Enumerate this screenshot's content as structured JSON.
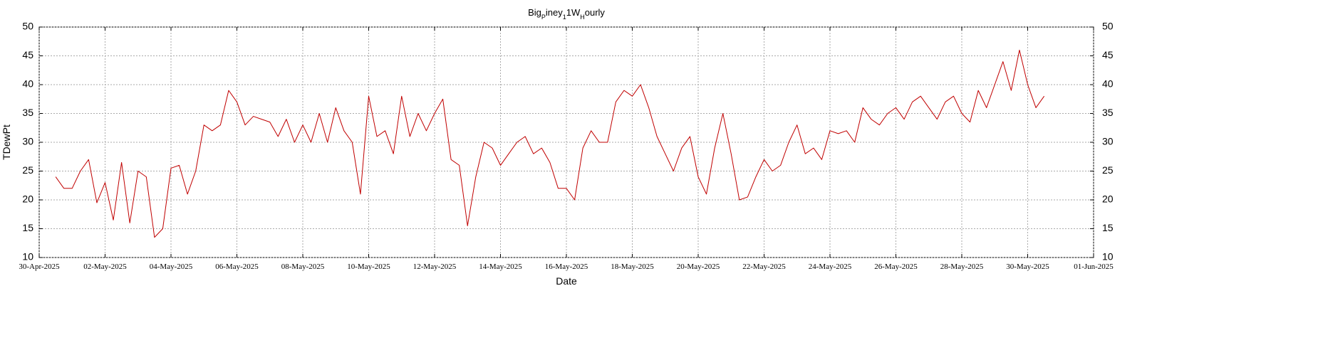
{
  "chart_data": {
    "type": "line",
    "title": [
      "Big",
      "P",
      "iney",
      "1",
      "1W",
      "H",
      "ourly"
    ],
    "x_label": "Date",
    "y_label": "TDewPt",
    "grid": true,
    "xlim": [
      "2025-04-30",
      "2025-06-01"
    ],
    "xticks": [
      {
        "value": "2025-04-30",
        "label": "30-Apr-2025"
      },
      {
        "value": "2025-05-02",
        "label": "02-May-2025"
      },
      {
        "value": "2025-05-04",
        "label": "04-May-2025"
      },
      {
        "value": "2025-05-06",
        "label": "06-May-2025"
      },
      {
        "value": "2025-05-08",
        "label": "08-May-2025"
      },
      {
        "value": "2025-05-10",
        "label": "10-May-2025"
      },
      {
        "value": "2025-05-12",
        "label": "12-May-2025"
      },
      {
        "value": "2025-05-14",
        "label": "14-May-2025"
      },
      {
        "value": "2025-05-16",
        "label": "16-May-2025"
      },
      {
        "value": "2025-05-18",
        "label": "18-May-2025"
      },
      {
        "value": "2025-05-20",
        "label": "20-May-2025"
      },
      {
        "value": "2025-05-22",
        "label": "22-May-2025"
      },
      {
        "value": "2025-05-24",
        "label": "24-May-2025"
      },
      {
        "value": "2025-05-26",
        "label": "26-May-2025"
      },
      {
        "value": "2025-05-28",
        "label": "28-May-2025"
      },
      {
        "value": "2025-05-30",
        "label": "30-May-2025"
      },
      {
        "value": "2025-06-01",
        "label": "01-Jun-2025"
      }
    ],
    "ylim": [
      10,
      50
    ],
    "yticks": [
      10,
      15,
      20,
      25,
      30,
      35,
      40,
      45,
      50
    ],
    "color": "#c00000",
    "x": [
      "2025-04-30 12:00",
      "2025-04-30 18:00",
      "2025-05-01 00:00",
      "2025-05-01 06:00",
      "2025-05-01 12:00",
      "2025-05-01 18:00",
      "2025-05-02 00:00",
      "2025-05-02 06:00",
      "2025-05-02 12:00",
      "2025-05-02 18:00",
      "2025-05-03 00:00",
      "2025-05-03 06:00",
      "2025-05-03 12:00",
      "2025-05-03 18:00",
      "2025-05-04 00:00",
      "2025-05-04 06:00",
      "2025-05-04 12:00",
      "2025-05-04 18:00",
      "2025-05-05 00:00",
      "2025-05-05 06:00",
      "2025-05-05 12:00",
      "2025-05-05 18:00",
      "2025-05-06 00:00",
      "2025-05-06 06:00",
      "2025-05-06 12:00",
      "2025-05-06 18:00",
      "2025-05-07 00:00",
      "2025-05-07 06:00",
      "2025-05-07 12:00",
      "2025-05-07 18:00",
      "2025-05-08 00:00",
      "2025-05-08 06:00",
      "2025-05-08 12:00",
      "2025-05-08 18:00",
      "2025-05-09 00:00",
      "2025-05-09 06:00",
      "2025-05-09 12:00",
      "2025-05-09 18:00",
      "2025-05-10 00:00",
      "2025-05-10 06:00",
      "2025-05-10 12:00",
      "2025-05-10 18:00",
      "2025-05-11 00:00",
      "2025-05-11 06:00",
      "2025-05-11 12:00",
      "2025-05-11 18:00",
      "2025-05-12 00:00",
      "2025-05-12 06:00",
      "2025-05-12 12:00",
      "2025-05-12 18:00",
      "2025-05-13 00:00",
      "2025-05-13 06:00",
      "2025-05-13 12:00",
      "2025-05-13 18:00",
      "2025-05-14 00:00",
      "2025-05-14 06:00",
      "2025-05-14 12:00",
      "2025-05-14 18:00",
      "2025-05-15 00:00",
      "2025-05-15 06:00",
      "2025-05-15 12:00",
      "2025-05-15 18:00",
      "2025-05-16 00:00",
      "2025-05-16 06:00",
      "2025-05-16 12:00",
      "2025-05-16 18:00",
      "2025-05-17 00:00",
      "2025-05-17 06:00",
      "2025-05-17 12:00",
      "2025-05-17 18:00",
      "2025-05-18 00:00",
      "2025-05-18 06:00",
      "2025-05-18 12:00",
      "2025-05-18 18:00",
      "2025-05-19 00:00",
      "2025-05-19 06:00",
      "2025-05-19 12:00",
      "2025-05-19 18:00",
      "2025-05-20 00:00",
      "2025-05-20 06:00",
      "2025-05-20 12:00",
      "2025-05-20 18:00",
      "2025-05-21 00:00",
      "2025-05-21 06:00",
      "2025-05-21 12:00",
      "2025-05-21 18:00",
      "2025-05-22 00:00",
      "2025-05-22 06:00",
      "2025-05-22 12:00",
      "2025-05-22 18:00",
      "2025-05-23 00:00",
      "2025-05-23 06:00",
      "2025-05-23 12:00",
      "2025-05-23 18:00",
      "2025-05-24 00:00",
      "2025-05-24 06:00",
      "2025-05-24 12:00",
      "2025-05-24 18:00",
      "2025-05-25 00:00",
      "2025-05-25 06:00",
      "2025-05-25 12:00",
      "2025-05-25 18:00",
      "2025-05-26 00:00",
      "2025-05-26 06:00",
      "2025-05-26 12:00",
      "2025-05-26 18:00",
      "2025-05-27 00:00",
      "2025-05-27 06:00",
      "2025-05-27 12:00",
      "2025-05-27 18:00",
      "2025-05-28 00:00",
      "2025-05-28 06:00",
      "2025-05-28 12:00",
      "2025-05-28 18:00",
      "2025-05-29 00:00",
      "2025-05-29 06:00",
      "2025-05-29 12:00",
      "2025-05-29 18:00",
      "2025-05-30 00:00",
      "2025-05-30 06:00",
      "2025-05-30 12:00"
    ],
    "values": [
      24,
      22,
      22,
      25,
      27,
      19.5,
      23,
      16.5,
      26.5,
      16,
      25,
      24,
      13.5,
      15,
      25.5,
      26,
      21,
      25,
      33,
      32,
      33,
      39,
      37,
      33,
      34.5,
      34,
      33.5,
      31,
      34,
      30,
      33,
      30,
      35,
      30,
      36,
      32,
      30,
      21,
      38,
      31,
      32,
      28,
      38,
      31,
      35,
      32,
      35,
      37.5,
      27,
      26,
      15.5,
      24,
      30,
      29,
      26,
      28,
      30,
      31,
      28,
      29,
      26.5,
      22,
      22,
      20,
      29,
      32,
      30,
      30,
      37,
      39,
      38,
      40,
      36,
      31,
      28,
      25,
      29,
      31,
      24,
      21,
      29,
      35,
      28,
      20,
      20.5,
      24,
      27,
      25,
      26,
      30,
      33,
      28,
      29,
      27,
      32,
      31.5,
      32,
      30,
      36,
      34,
      33,
      35,
      36,
      34,
      37,
      38,
      36,
      34,
      37,
      38,
      35,
      33.5,
      39,
      36,
      40,
      44,
      39,
      46,
      40,
      36,
      38
    ]
  }
}
